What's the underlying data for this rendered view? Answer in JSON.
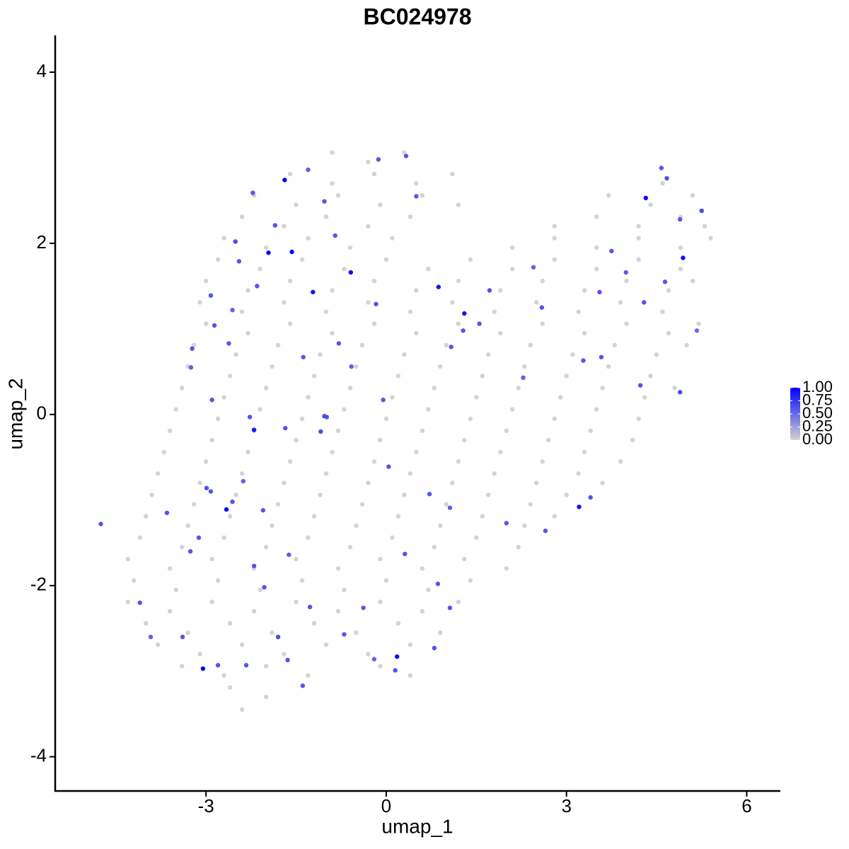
{
  "chart_data": {
    "type": "scatter",
    "title": "BC024978",
    "x_label": "umap_1",
    "y_label": "umap_2",
    "xlim": [
      -5.51,
      6.56
    ],
    "ylim": [
      -4.4,
      4.43
    ],
    "xticks": [
      -3,
      0,
      3,
      6
    ],
    "yticks": [
      -4,
      -2,
      0,
      2,
      4
    ],
    "grid": false,
    "color_scale": {
      "low": "#d3d3d3",
      "high": "#0000ff",
      "lim": [
        0,
        1
      ],
      "ticks": [
        {
          "value": 0,
          "label": "0.00"
        },
        {
          "value": 0.25,
          "label": "0.25"
        },
        {
          "value": 0.5,
          "label": "0.50"
        },
        {
          "value": 0.75,
          "label": "0.75"
        },
        {
          "value": 1,
          "label": "1.00"
        }
      ]
    },
    "x": [
      -0.9,
      -0.3,
      0.3,
      -1.6,
      -0.9,
      -0.2,
      0.5,
      1.1,
      4.6,
      -2.2,
      -1.5,
      -0.8,
      -0.1,
      0.6,
      1.2,
      3.7,
      4.4,
      5.1,
      -2.4,
      -1.7,
      -1.0,
      -0.3,
      0.4,
      2.8,
      3.5,
      4.2,
      4.9,
      5.3,
      -2.7,
      -2.0,
      -1.3,
      -0.6,
      0.1,
      2.1,
      2.8,
      3.5,
      4.2,
      4.9,
      5.4,
      -2.8,
      -2.1,
      -1.4,
      -0.7,
      0.0,
      0.7,
      1.4,
      2.1,
      2.8,
      3.5,
      4.2,
      4.9,
      -3.0,
      -2.3,
      -1.6,
      -0.9,
      -0.2,
      0.5,
      1.2,
      1.9,
      2.6,
      3.3,
      4.0,
      4.7,
      5.1,
      -3.1,
      -2.4,
      -1.7,
      -1.0,
      -0.3,
      0.4,
      1.1,
      1.8,
      2.5,
      3.2,
      3.9,
      4.6,
      -3.0,
      -2.3,
      -1.6,
      -0.9,
      -0.2,
      0.5,
      1.2,
      1.9,
      2.6,
      3.3,
      4.0,
      4.7,
      5.2,
      -3.2,
      -2.5,
      -1.8,
      -1.1,
      -0.4,
      0.3,
      1.0,
      1.7,
      2.4,
      3.1,
      3.8,
      4.5,
      5.0,
      -3.3,
      -2.6,
      -1.9,
      -1.2,
      -0.5,
      0.2,
      0.9,
      1.6,
      2.3,
      3.0,
      3.7,
      4.4,
      -3.4,
      -2.7,
      -2.0,
      -1.3,
      -0.6,
      0.1,
      0.8,
      1.5,
      2.2,
      2.9,
      3.6,
      4.3,
      4.8,
      -3.5,
      -2.8,
      -2.1,
      -1.4,
      -0.7,
      0.0,
      0.7,
      1.4,
      2.1,
      2.8,
      3.5,
      4.2,
      -3.6,
      -2.9,
      -2.2,
      -1.5,
      -0.8,
      -0.1,
      0.6,
      1.3,
      2.0,
      2.7,
      3.4,
      4.1,
      -3.7,
      -3.0,
      -2.3,
      -1.6,
      -0.9,
      -0.2,
      0.5,
      1.2,
      1.9,
      2.6,
      3.3,
      3.9,
      -3.8,
      -3.1,
      -2.4,
      -1.7,
      -1.0,
      -0.3,
      0.4,
      1.1,
      1.8,
      2.5,
      3.2,
      3.6,
      -3.9,
      -3.2,
      -2.5,
      -1.8,
      -1.1,
      -0.4,
      0.3,
      1.0,
      1.7,
      2.4,
      3.0,
      -4.0,
      -3.3,
      -2.6,
      -1.9,
      -1.2,
      -0.5,
      0.2,
      0.9,
      1.6,
      2.3,
      2.8,
      -4.1,
      -3.4,
      -2.7,
      -2.0,
      -1.3,
      -0.6,
      0.1,
      0.8,
      1.5,
      2.2,
      -4.3,
      -3.6,
      -2.9,
      -2.2,
      -1.5,
      -0.8,
      -0.1,
      0.6,
      1.3,
      2.0,
      -4.2,
      -3.5,
      -2.8,
      -2.1,
      -1.4,
      -0.7,
      0.0,
      0.7,
      1.4,
      -4.3,
      -3.6,
      -2.9,
      -2.2,
      -1.5,
      -0.8,
      -0.1,
      0.6,
      1.2,
      -4.0,
      -3.3,
      -2.6,
      -1.9,
      -1.2,
      -0.5,
      0.2,
      0.9,
      -3.8,
      -3.1,
      -2.4,
      -1.7,
      -1.0,
      -0.3,
      0.4,
      -3.4,
      -2.7,
      -2.0,
      -1.3,
      -0.1,
      0.4,
      -2.6,
      -2.0,
      -2.4,
      -1.69,
      -1.96,
      -1.57,
      -1.22,
      -0.59,
      0.87,
      1.3,
      4.32,
      4.94,
      -2.2,
      -2.66,
      3.21,
      0.18,
      -3.05,
      -4.75,
      -3.23,
      -3.25,
      -2.9,
      -2.51,
      -2.22,
      -1.85,
      -1.3,
      -0.13,
      0.33,
      0.5,
      -0.58,
      -0.05,
      -0.99,
      -1.09,
      0.04,
      0.72,
      1.06,
      2.0,
      2.65,
      3.4,
      4.23,
      4.89,
      3.58,
      3.99,
      3.75,
      2.45,
      1.72,
      2.59,
      4.58,
      4.67,
      5.25,
      4.89,
      -2.92,
      -2.99,
      -2.38,
      -2.05,
      -3.26,
      -3.65,
      -4.1,
      -3.92,
      -3.39,
      -2.8,
      -2.33,
      -1.8,
      -1.39,
      -1.64,
      -1.27,
      -0.7,
      -0.2,
      0.15,
      0.8,
      1.06,
      0.86,
      0.31,
      -0.38,
      -2.2,
      -2.03,
      -1.62,
      -2.56,
      -3.12,
      -2.27,
      -1.68,
      -1.03,
      -1.38,
      -0.79,
      -2.62,
      -2.92,
      -2.56,
      -2.15,
      -2.45,
      -0.85,
      -1.03,
      -0.17,
      1.28,
      1.08,
      1.55,
      2.28,
      3.28,
      5.17,
      4.64,
      4.29,
      3.55,
      -2.86
    ],
    "y": [
      3.06,
      2.95,
      3.06,
      2.81,
      2.7,
      2.81,
      2.7,
      2.81,
      2.7,
      2.56,
      2.45,
      2.56,
      2.45,
      2.56,
      2.45,
      2.56,
      2.45,
      2.56,
      2.31,
      2.2,
      2.31,
      2.2,
      2.31,
      2.2,
      2.31,
      2.2,
      2.31,
      2.2,
      2.06,
      1.95,
      2.06,
      1.95,
      2.06,
      1.95,
      2.06,
      1.95,
      2.06,
      1.95,
      2.06,
      1.81,
      1.7,
      1.81,
      1.7,
      1.81,
      1.7,
      1.81,
      1.7,
      1.81,
      1.7,
      1.81,
      1.7,
      1.56,
      1.45,
      1.56,
      1.45,
      1.56,
      1.45,
      1.56,
      1.45,
      1.56,
      1.45,
      1.56,
      1.45,
      1.56,
      1.31,
      1.2,
      1.31,
      1.2,
      1.31,
      1.2,
      1.31,
      1.2,
      1.31,
      1.2,
      1.31,
      1.2,
      1.06,
      0.95,
      1.06,
      0.95,
      1.06,
      0.95,
      1.06,
      0.95,
      1.06,
      0.95,
      1.06,
      0.95,
      1.06,
      0.81,
      0.7,
      0.81,
      0.7,
      0.81,
      0.7,
      0.81,
      0.7,
      0.81,
      0.7,
      0.81,
      0.7,
      0.81,
      0.56,
      0.45,
      0.56,
      0.45,
      0.56,
      0.45,
      0.56,
      0.45,
      0.56,
      0.45,
      0.56,
      0.45,
      0.31,
      0.2,
      0.31,
      0.2,
      0.31,
      0.2,
      0.31,
      0.2,
      0.31,
      0.2,
      0.31,
      0.2,
      0.31,
      0.06,
      -0.05,
      0.06,
      -0.05,
      0.06,
      -0.05,
      0.06,
      -0.05,
      0.06,
      -0.05,
      0.06,
      -0.05,
      -0.19,
      -0.3,
      -0.19,
      -0.3,
      -0.19,
      -0.3,
      -0.19,
      -0.3,
      -0.19,
      -0.3,
      -0.19,
      -0.3,
      -0.44,
      -0.55,
      -0.44,
      -0.55,
      -0.44,
      -0.55,
      -0.44,
      -0.55,
      -0.44,
      -0.55,
      -0.44,
      -0.55,
      -0.69,
      -0.8,
      -0.69,
      -0.8,
      -0.69,
      -0.8,
      -0.69,
      -0.8,
      -0.69,
      -0.8,
      -0.69,
      -0.8,
      -0.94,
      -1.05,
      -0.94,
      -1.05,
      -0.94,
      -1.05,
      -0.94,
      -1.05,
      -0.94,
      -1.05,
      -0.94,
      -1.19,
      -1.3,
      -1.19,
      -1.3,
      -1.19,
      -1.3,
      -1.19,
      -1.3,
      -1.19,
      -1.3,
      -1.19,
      -1.44,
      -1.55,
      -1.44,
      -1.55,
      -1.44,
      -1.55,
      -1.44,
      -1.55,
      -1.44,
      -1.55,
      -1.69,
      -1.8,
      -1.69,
      -1.8,
      -1.69,
      -1.8,
      -1.69,
      -1.8,
      -1.69,
      -1.8,
      -1.94,
      -2.05,
      -1.94,
      -2.05,
      -1.94,
      -2.05,
      -1.94,
      -2.05,
      -1.94,
      -2.19,
      -2.3,
      -2.19,
      -2.3,
      -2.19,
      -2.3,
      -2.19,
      -2.3,
      -2.19,
      -2.44,
      -2.55,
      -2.44,
      -2.55,
      -2.44,
      -2.55,
      -2.44,
      -2.55,
      -2.69,
      -2.8,
      -2.69,
      -2.8,
      -2.69,
      -2.8,
      -2.69,
      -2.94,
      -3.05,
      -2.94,
      -3.05,
      -2.94,
      -3.05,
      -3.19,
      -3.3,
      -3.45,
      2.74,
      1.89,
      1.9,
      1.43,
      1.66,
      1.49,
      1.18,
      2.53,
      1.83,
      -0.18,
      -1.11,
      -1.08,
      -2.83,
      -2.97,
      -1.28,
      0.77,
      0.55,
      0.17,
      2.02,
      2.59,
      2.21,
      2.86,
      2.98,
      3.02,
      2.55,
      0.56,
      0.17,
      -0.03,
      -0.2,
      -0.61,
      -0.93,
      -1.09,
      -1.27,
      -1.36,
      -0.97,
      0.34,
      0.26,
      0.67,
      1.66,
      1.91,
      1.72,
      1.45,
      1.25,
      2.88,
      2.76,
      2.38,
      2.28,
      -0.9,
      -0.86,
      -0.78,
      -1.12,
      -1.6,
      -1.15,
      -2.2,
      -2.6,
      -2.6,
      -2.93,
      -2.93,
      -2.6,
      -3.17,
      -2.87,
      -2.25,
      -2.57,
      -2.86,
      -2.99,
      -2.73,
      -2.26,
      -1.98,
      -1.63,
      -2.26,
      -1.77,
      -2.02,
      -1.64,
      -1.02,
      -1.44,
      -0.03,
      -0.16,
      -0.02,
      0.67,
      0.83,
      0.83,
      1.39,
      1.22,
      1.5,
      1.79,
      2.09,
      2.49,
      1.29,
      0.98,
      0.79,
      1.06,
      0.43,
      0.63,
      0.98,
      1.55,
      1.31,
      1.43,
      1.04
    ],
    "values": [
      0,
      0,
      0,
      0,
      0,
      0,
      0,
      0,
      0,
      0,
      0,
      0,
      0,
      0,
      0,
      0,
      0,
      0,
      0,
      0,
      0,
      0,
      0,
      0,
      0,
      0,
      0,
      0,
      0,
      0,
      0,
      0,
      0,
      0,
      0,
      0,
      0,
      0,
      0,
      0,
      0,
      0,
      0,
      0,
      0,
      0,
      0,
      0,
      0,
      0,
      0,
      0,
      0,
      0,
      0,
      0,
      0,
      0,
      0,
      0,
      0,
      0,
      0,
      0,
      0,
      0,
      0,
      0,
      0,
      0,
      0,
      0,
      0,
      0,
      0,
      0,
      0,
      0,
      0,
      0,
      0,
      0,
      0,
      0,
      0,
      0,
      0,
      0,
      0,
      0,
      0,
      0,
      0,
      0,
      0,
      0,
      0,
      0,
      0,
      0,
      0,
      0,
      0,
      0,
      0,
      0,
      0,
      0,
      0,
      0,
      0,
      0,
      0,
      0,
      0,
      0,
      0,
      0,
      0,
      0,
      0,
      0,
      0,
      0,
      0,
      0,
      0,
      0,
      0,
      0,
      0,
      0,
      0,
      0,
      0,
      0,
      0,
      0,
      0,
      0,
      0,
      0,
      0,
      0,
      0,
      0,
      0,
      0,
      0,
      0,
      0,
      0,
      0,
      0,
      0,
      0,
      0,
      0,
      0,
      0,
      0,
      0,
      0,
      0,
      0,
      0,
      0,
      0,
      0,
      0,
      0,
      0,
      0,
      0,
      0,
      0,
      0,
      0,
      0,
      0,
      0,
      0,
      0,
      0,
      0,
      0,
      0,
      0,
      0,
      0,
      0,
      0,
      0,
      0,
      0,
      0,
      0,
      0,
      0,
      0,
      0,
      0,
      0,
      0,
      0,
      0,
      0,
      0,
      0,
      0,
      0,
      0,
      0,
      0,
      0,
      0,
      0,
      0,
      0,
      0,
      0,
      0,
      0,
      0,
      0,
      0,
      0,
      0,
      0,
      0,
      0,
      0,
      0,
      0,
      0,
      0,
      0,
      0,
      0,
      0,
      0,
      0,
      0,
      0,
      0,
      0,
      0,
      0,
      0,
      0,
      0,
      0,
      0,
      0,
      0,
      0,
      0,
      0,
      0,
      1,
      0.95,
      0.95,
      0.9,
      0.95,
      0.9,
      0.9,
      0.95,
      0.95,
      0.9,
      0.95,
      0.9,
      0.95,
      1,
      0.6,
      0.6,
      0.55,
      0.6,
      0.65,
      0.6,
      0.6,
      0.55,
      0.6,
      0.6,
      0.6,
      0.55,
      0.6,
      0.6,
      0.65,
      0.6,
      0.6,
      0.55,
      0.6,
      0.6,
      0.6,
      0.6,
      0.65,
      0.6,
      0.6,
      0.6,
      0.55,
      0.6,
      0.6,
      0.6,
      0.6,
      0.65,
      0.6,
      0.6,
      0.6,
      0.55,
      0.6,
      0.6,
      0.6,
      0.6,
      0.55,
      0.6,
      0.6,
      0.6,
      0.65,
      0.6,
      0.6,
      0.6,
      0.6,
      0.55,
      0.6,
      0.6,
      0.6,
      0.6,
      0.6,
      0.6,
      0.6,
      0.6,
      0.55,
      0.6,
      0.6,
      0.6,
      0.6,
      0.65,
      0.6,
      0.6,
      0.6,
      0.6,
      0.55,
      0.6,
      0.6,
      0.6,
      0.6,
      0.6,
      0.6,
      0.6,
      0.6,
      0.55,
      0.6,
      0.5,
      0.6,
      0.6,
      0.6,
      0.6
    ]
  }
}
